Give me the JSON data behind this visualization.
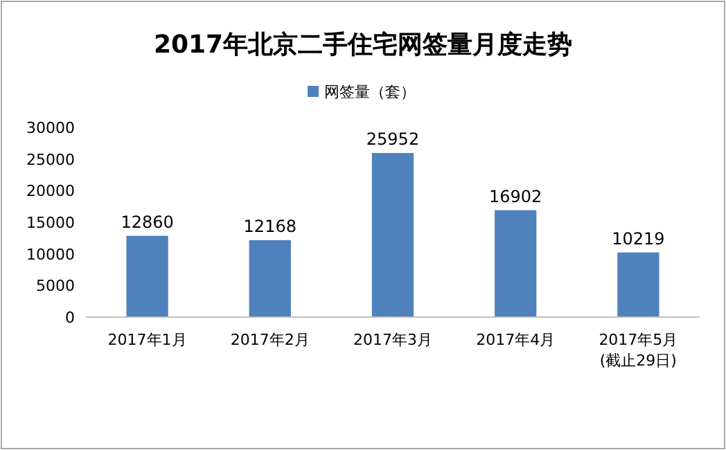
{
  "chart_data": {
    "type": "bar",
    "title": "2017年北京二手住宅网签量月度走势",
    "categories": [
      "2017年1月",
      "2017年2月",
      "2017年3月",
      "2017年4月",
      "2017年5月\n(截止29日)"
    ],
    "series": [
      {
        "name": "网签量（套）",
        "color": "#4f81bd",
        "values": [
          12860,
          12168,
          25952,
          16902,
          10219
        ]
      }
    ],
    "ylim": [
      0,
      30000
    ],
    "yticks": [
      0,
      5000,
      10000,
      15000,
      20000,
      25000,
      30000
    ],
    "data_labels": true,
    "legend": "top",
    "grid": false
  }
}
